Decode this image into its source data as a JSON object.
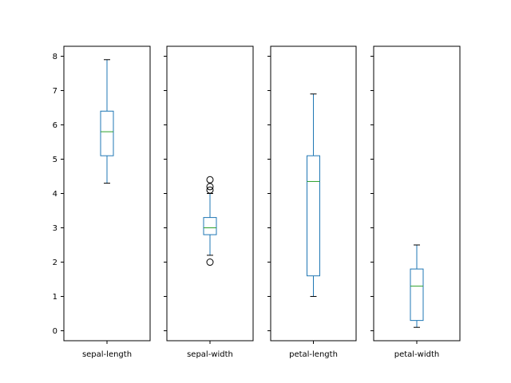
{
  "chart_data": {
    "type": "box",
    "shared_y": true,
    "ylim": [
      -0.29,
      8.29
    ],
    "yticks": [
      0,
      1,
      2,
      3,
      4,
      5,
      6,
      7,
      8
    ],
    "grid": false,
    "colors": {
      "box": "#1f77b4",
      "median": "#2ca02c",
      "whisker": "#1f77b4",
      "cap": "#000000",
      "flier": "#000000",
      "axes": "#000000"
    },
    "series": [
      {
        "name": "sepal-length",
        "whisker_low": 4.3,
        "q1": 5.1,
        "median": 5.8,
        "q3": 6.4,
        "whisker_high": 7.9,
        "outliers": []
      },
      {
        "name": "sepal-width",
        "whisker_low": 2.2,
        "q1": 2.8,
        "median": 3.0,
        "q3": 3.3,
        "whisker_high": 4.0,
        "outliers": [
          4.4,
          4.1,
          4.2,
          2.0
        ]
      },
      {
        "name": "petal-length",
        "whisker_low": 1.0,
        "q1": 1.6,
        "median": 4.35,
        "q3": 5.1,
        "whisker_high": 6.9,
        "outliers": []
      },
      {
        "name": "petal-width",
        "whisker_low": 0.1,
        "q1": 0.3,
        "median": 1.3,
        "q3": 1.8,
        "whisker_high": 2.5,
        "outliers": []
      }
    ]
  }
}
